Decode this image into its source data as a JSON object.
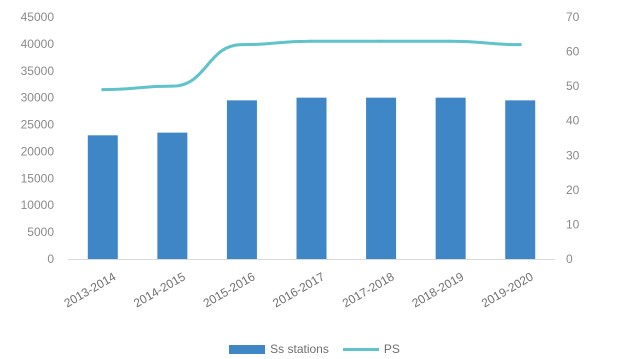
{
  "chart_data": {
    "type": "bar",
    "categories": [
      "2013-2014",
      "2014-2015",
      "2015-2016",
      "2016-2017",
      "2017-2018",
      "2018-2019",
      "2019-2020"
    ],
    "series": [
      {
        "name": "Ss stations",
        "type": "bar",
        "axis": "left",
        "values": [
          23000,
          23500,
          29500,
          30000,
          30000,
          30000,
          29500
        ]
      },
      {
        "name": "PS",
        "type": "line",
        "axis": "right",
        "values": [
          49,
          50,
          62,
          63,
          63,
          63,
          62
        ]
      }
    ],
    "left_axis": {
      "ylim": [
        0,
        45000
      ],
      "ticks": [
        "45000",
        "40000",
        "35000",
        "30000",
        "25000",
        "20000",
        "15000",
        "10000",
        "5000",
        "0"
      ]
    },
    "right_axis": {
      "ylim": [
        0,
        70
      ],
      "ticks": [
        "70",
        "60",
        "50",
        "40",
        "30",
        "20",
        "10",
        "0"
      ]
    },
    "grid": false,
    "legend_position": "bottom",
    "colors": {
      "bar": "#3f86c6",
      "line": "#5fc3c9"
    }
  }
}
